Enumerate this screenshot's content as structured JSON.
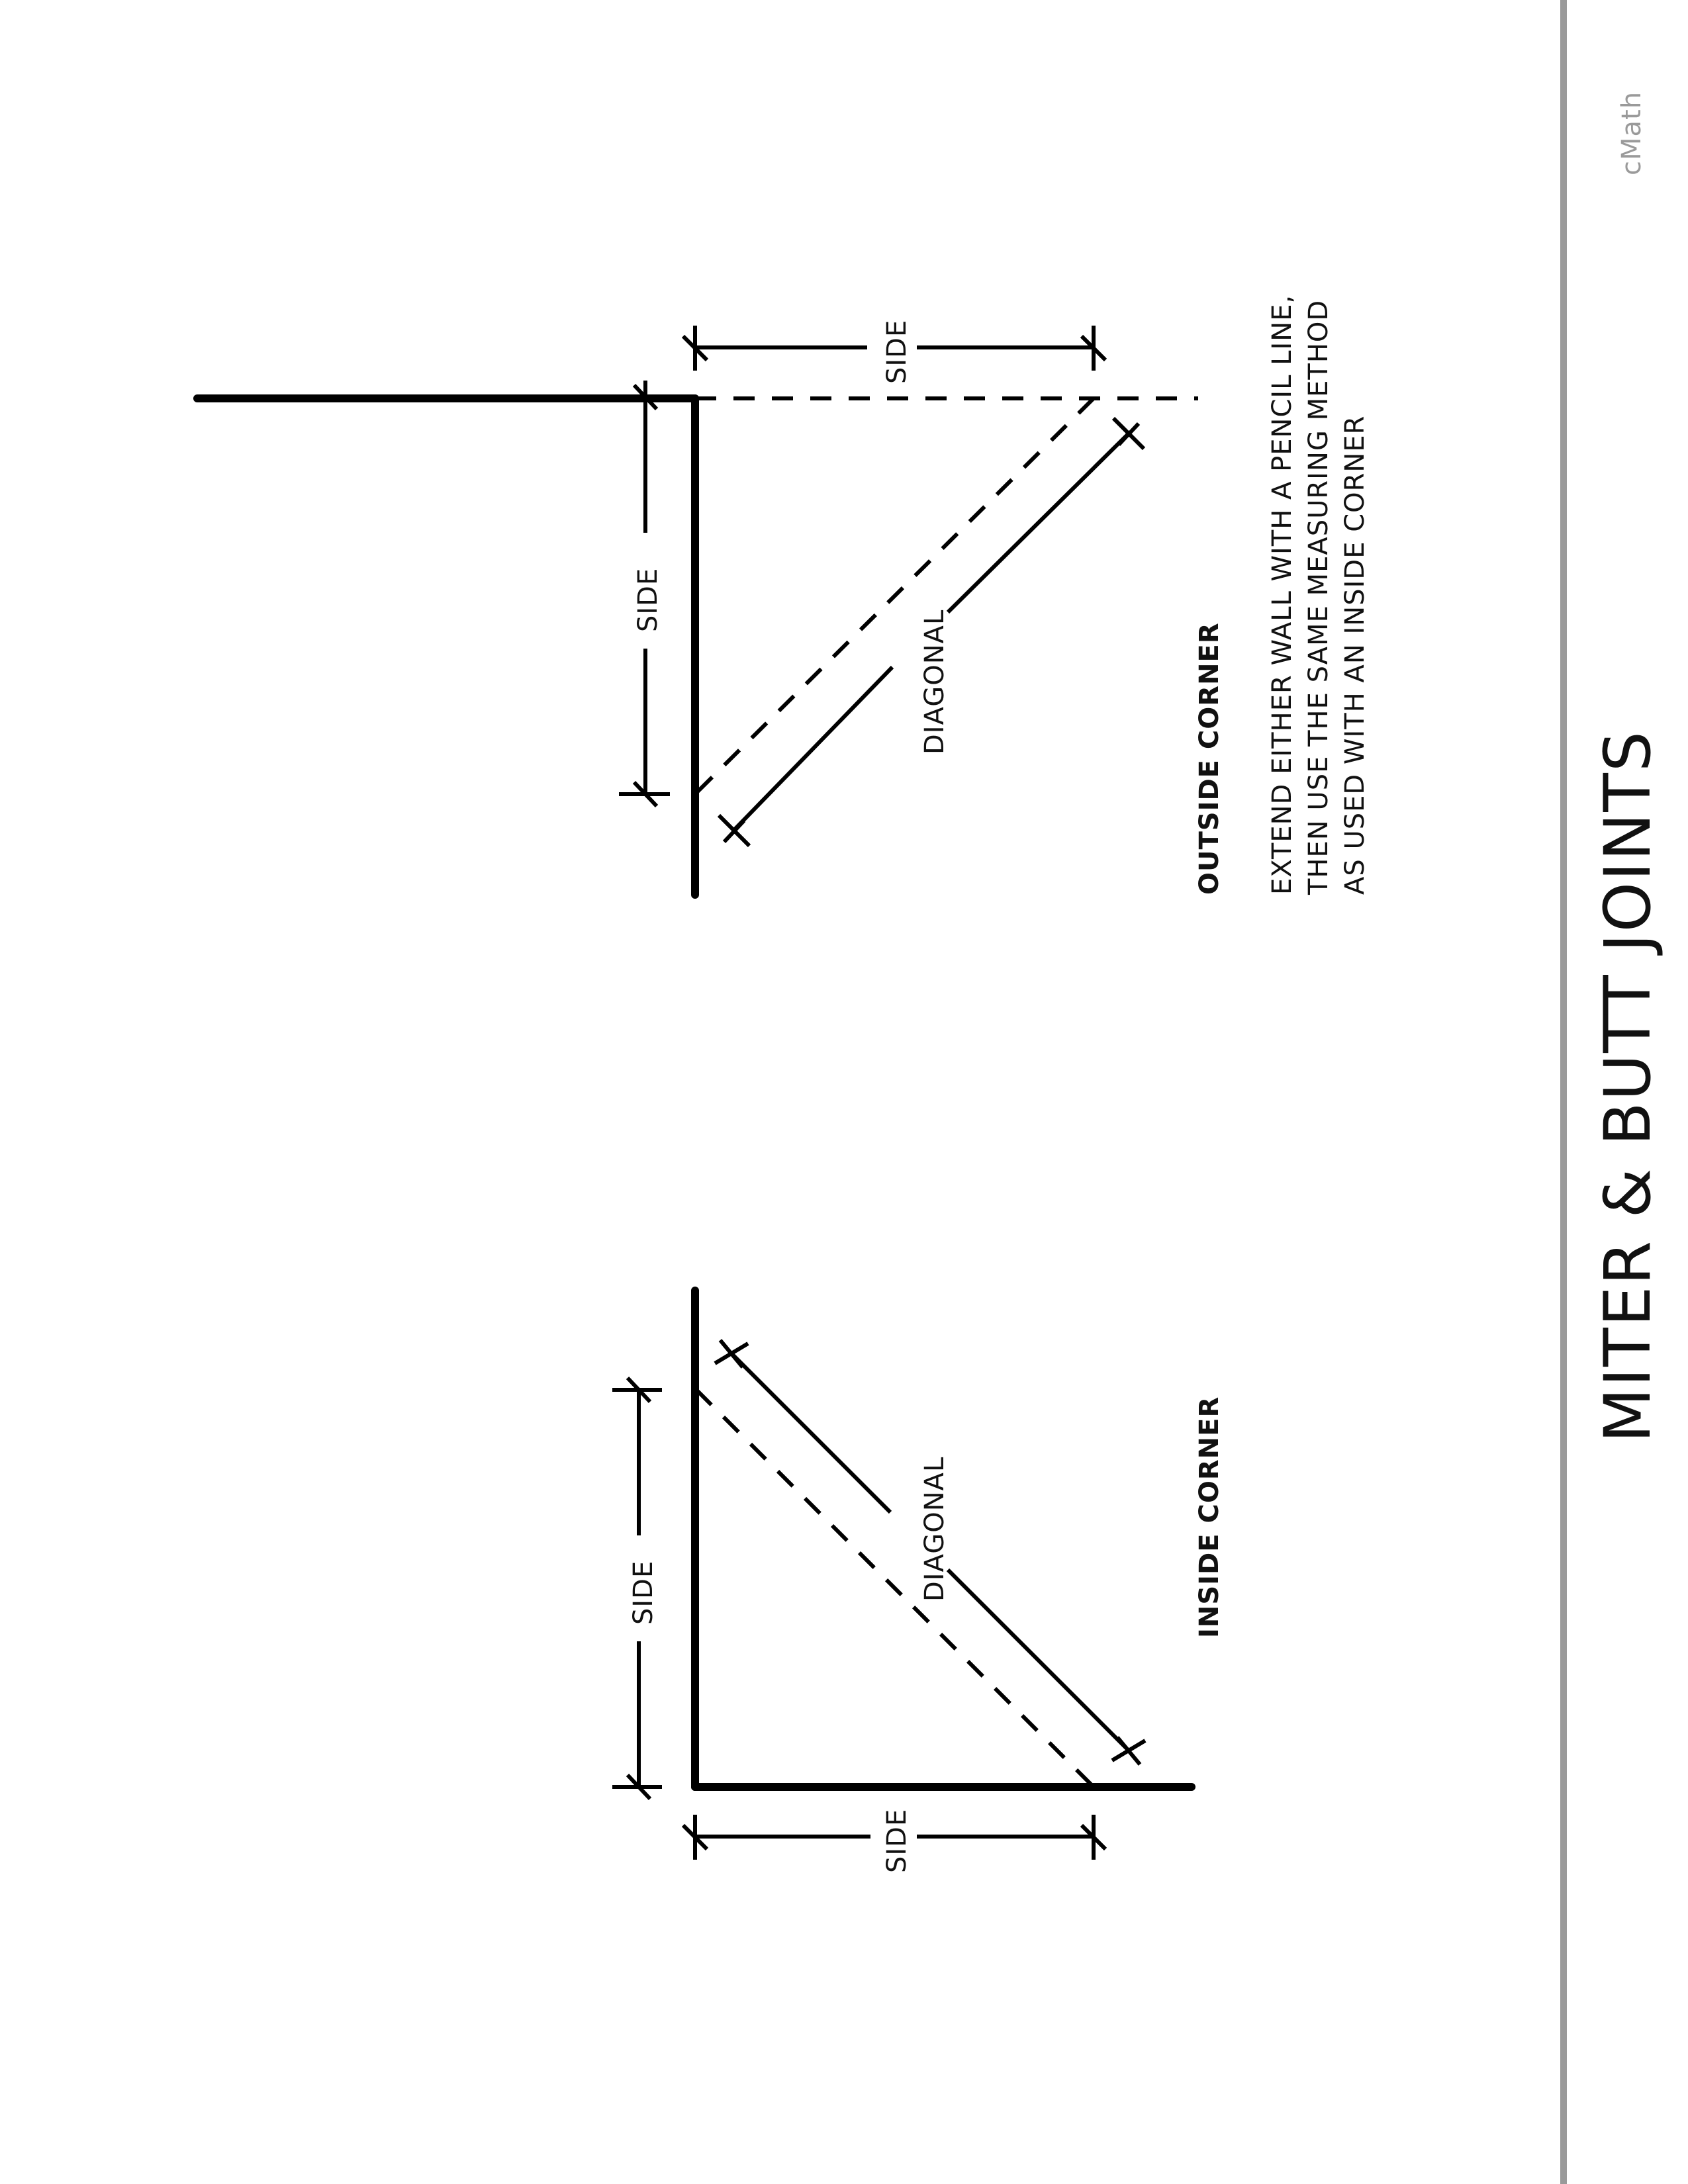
{
  "title": "MITER & BUTT JOINTS",
  "brand": "cMath",
  "inside_corner": {
    "heading": "INSIDE CORNER",
    "side_label_vertical": "SIDE",
    "side_label_horizontal": "SIDE",
    "diagonal_label": "DIAGONAL"
  },
  "outside_corner": {
    "heading": "OUTSIDE CORNER",
    "side_label_vertical": "SIDE",
    "side_label_horizontal": "SIDE",
    "diagonal_label": "DIAGONAL",
    "note_lines": [
      "EXTEND EITHER WALL WITH A PENCIL LINE,",
      "THEN USE THE SAME MEASURING METHOD",
      "AS USED WITH AN INSIDE CORNER"
    ]
  },
  "colors": {
    "ink": "#000000",
    "margin_rule": "#9a9a9a",
    "brand": "#9a9a9a"
  }
}
